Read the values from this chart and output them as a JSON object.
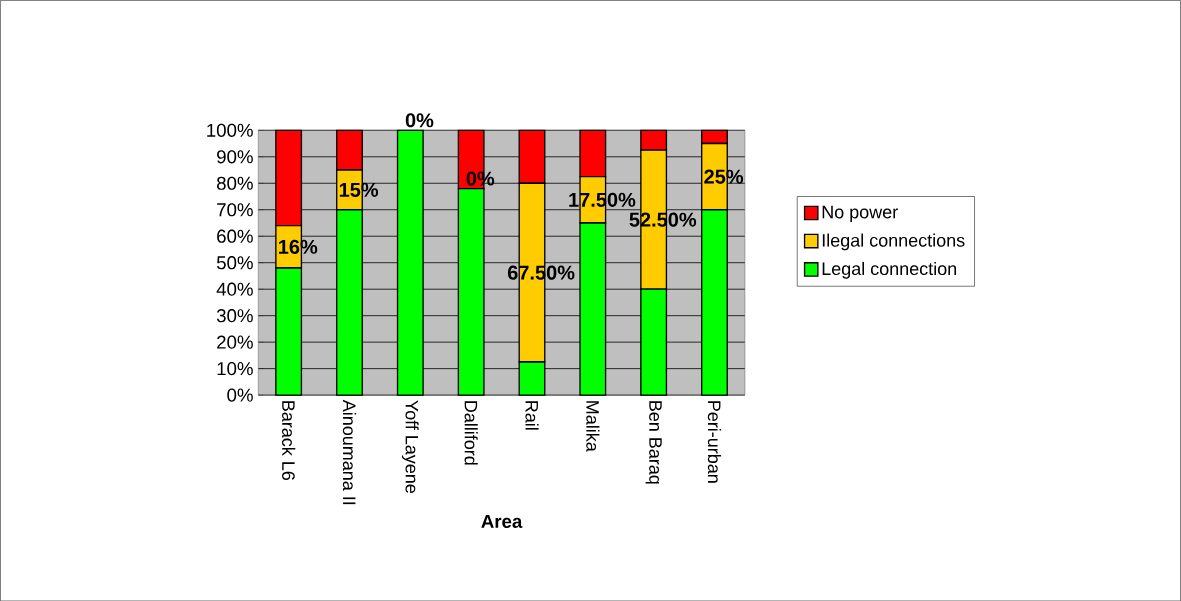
{
  "chart_data": {
    "type": "bar",
    "stacked": true,
    "xlabel": "Area",
    "categories": [
      "Barack L6",
      "Ainoumana II",
      "Yoff Layene",
      "Dalliford",
      "Rail",
      "Malika",
      "Ben Baraq",
      "Peri-urban"
    ],
    "series": [
      {
        "name": "Legal connection",
        "color": "#00ff00",
        "values": [
          48,
          70,
          100,
          78,
          12.5,
          65,
          40,
          70
        ]
      },
      {
        "name": "Ilegal connections",
        "color": "#ffcc00",
        "values": [
          16,
          15,
          0,
          0,
          67.5,
          17.5,
          52.5,
          25
        ],
        "value_labels": [
          "16%",
          "15%",
          "0%",
          "0%",
          "67.50%",
          "17.50%",
          "52.50%",
          "25%"
        ]
      },
      {
        "name": "No power",
        "color": "#ff0000",
        "values": [
          36,
          15,
          0,
          22,
          20,
          17.5,
          7.5,
          5
        ]
      }
    ],
    "ylim": [
      0,
      100
    ],
    "yticks": [
      {
        "value": 0,
        "label": "0%"
      },
      {
        "value": 10,
        "label": "10%"
      },
      {
        "value": 20,
        "label": "20%"
      },
      {
        "value": 30,
        "label": "30%"
      },
      {
        "value": 40,
        "label": "40%"
      },
      {
        "value": 50,
        "label": "50%"
      },
      {
        "value": 60,
        "label": "60%"
      },
      {
        "value": 70,
        "label": "70%"
      },
      {
        "value": 80,
        "label": "80%"
      },
      {
        "value": 90,
        "label": "90%"
      },
      {
        "value": 100,
        "label": "100%"
      }
    ],
    "grid": "y",
    "legend": "right"
  }
}
